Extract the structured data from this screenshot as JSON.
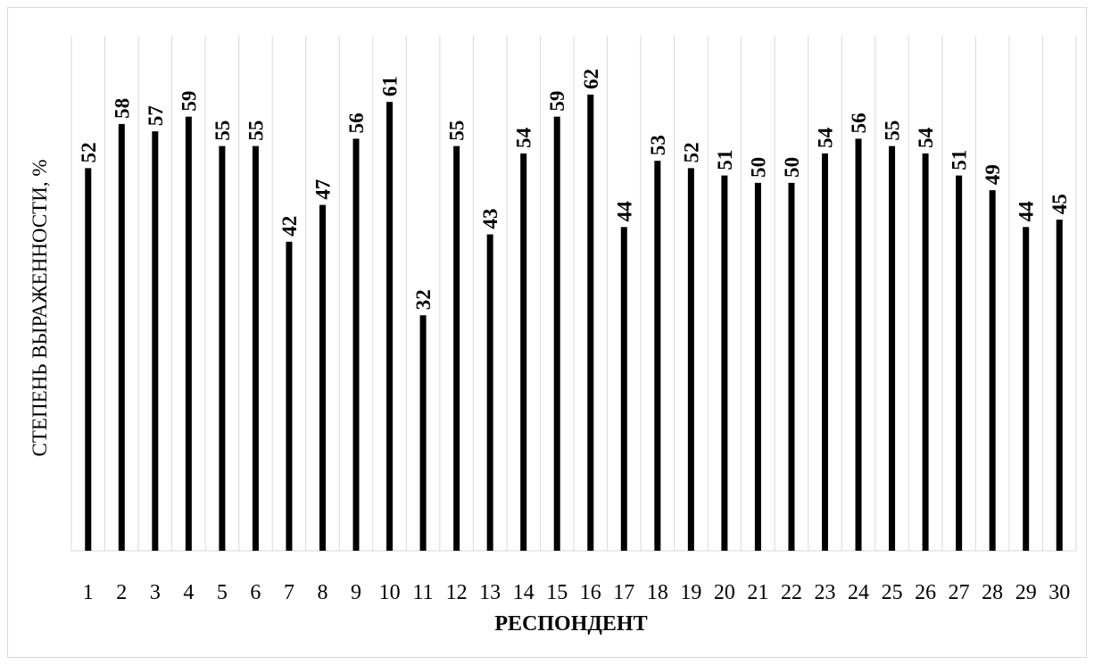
{
  "chart_data": {
    "type": "bar",
    "categories": [
      "1",
      "2",
      "3",
      "4",
      "5",
      "6",
      "7",
      "8",
      "9",
      "10",
      "11",
      "12",
      "13",
      "14",
      "15",
      "16",
      "17",
      "18",
      "19",
      "20",
      "21",
      "22",
      "23",
      "24",
      "25",
      "26",
      "27",
      "28",
      "29",
      "30"
    ],
    "values": [
      52,
      58,
      57,
      59,
      55,
      55,
      42,
      47,
      56,
      61,
      32,
      55,
      43,
      54,
      59,
      62,
      44,
      53,
      52,
      51,
      50,
      50,
      54,
      56,
      55,
      54,
      51,
      49,
      44,
      45
    ],
    "xlabel": "РЕСПОНДЕНТ",
    "ylabel": "СТЕПЕНЬ ВЫРАЖЕННОСТИ, %",
    "ylim": [
      0,
      70
    ],
    "grid": "vertical",
    "data_labels": true,
    "bar_color": "#000000",
    "grid_color": "#d9d9d9"
  }
}
